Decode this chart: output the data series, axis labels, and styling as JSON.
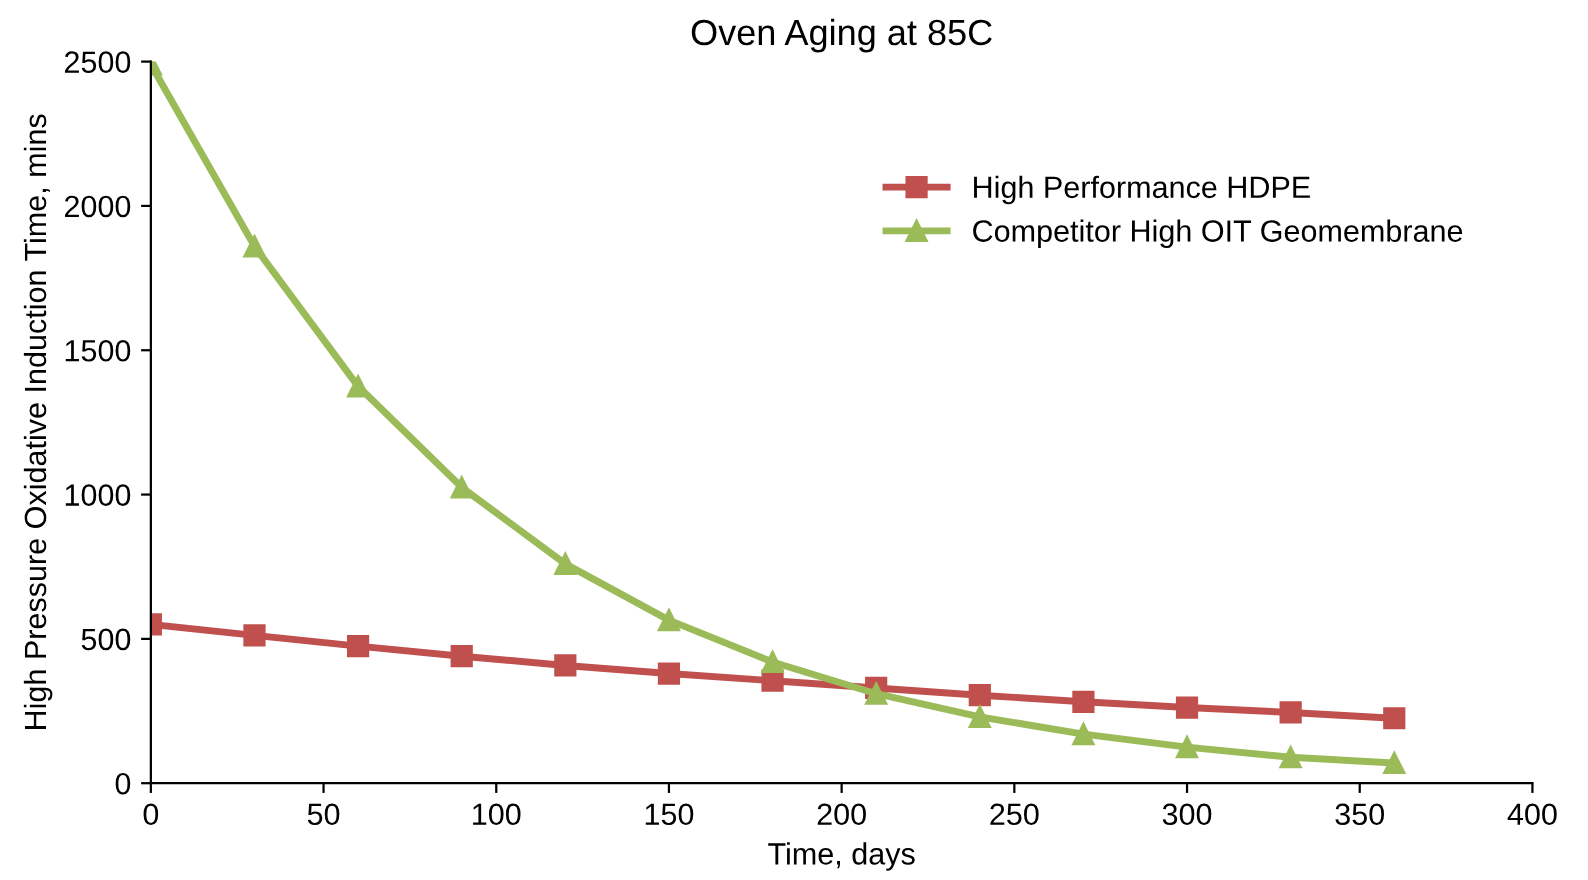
{
  "chart_data": {
    "type": "line",
    "title": "Oven Aging at 85C",
    "xlabel": "Time, days",
    "ylabel": "High Pressure Oxidative Induction Time, mins",
    "x": [
      0,
      30,
      60,
      90,
      120,
      150,
      180,
      210,
      240,
      270,
      300,
      330,
      360
    ],
    "series": [
      {
        "name": "High Performance HDPE",
        "color": "#c0504d",
        "marker": "square",
        "values": [
          550,
          512,
          475,
          440,
          408,
          380,
          355,
          330,
          305,
          282,
          262,
          245,
          225
        ]
      },
      {
        "name": "Competitor High OIT Geomembrane",
        "color": "#9bbb59",
        "marker": "triangle",
        "values": [
          2490,
          1860,
          1375,
          1025,
          760,
          565,
          420,
          310,
          230,
          170,
          125,
          90,
          70
        ]
      }
    ],
    "xlim": [
      0,
      400
    ],
    "xticks": [
      0,
      50,
      100,
      150,
      200,
      250,
      300,
      350,
      400
    ],
    "ylim": [
      0,
      2500
    ],
    "yticks": [
      0,
      500,
      1000,
      1500,
      2000,
      2500
    ],
    "grid": false,
    "legend": "top right",
    "line_style": "solid"
  }
}
